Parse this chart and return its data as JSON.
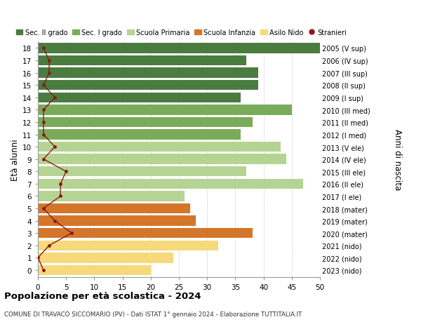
{
  "ages": [
    18,
    17,
    16,
    15,
    14,
    13,
    12,
    11,
    10,
    9,
    8,
    7,
    6,
    5,
    4,
    3,
    2,
    1,
    0
  ],
  "right_labels": [
    "2005 (V sup)",
    "2006 (IV sup)",
    "2007 (III sup)",
    "2008 (II sup)",
    "2009 (I sup)",
    "2010 (III med)",
    "2011 (II med)",
    "2012 (I med)",
    "2013 (V ele)",
    "2014 (IV ele)",
    "2015 (III ele)",
    "2016 (II ele)",
    "2017 (I ele)",
    "2018 (mater)",
    "2019 (mater)",
    "2020 (mater)",
    "2021 (nido)",
    "2022 (nido)",
    "2023 (nido)"
  ],
  "bar_values": [
    50,
    37,
    39,
    39,
    36,
    45,
    38,
    36,
    43,
    44,
    37,
    47,
    26,
    27,
    28,
    38,
    32,
    24,
    20
  ],
  "bar_colors": [
    "#4a7c3f",
    "#4a7c3f",
    "#4a7c3f",
    "#4a7c3f",
    "#4a7c3f",
    "#7aab5a",
    "#7aab5a",
    "#7aab5a",
    "#b5d494",
    "#b5d494",
    "#b5d494",
    "#b5d494",
    "#b5d494",
    "#d4762a",
    "#d4762a",
    "#d4762a",
    "#f5d97a",
    "#f5d97a",
    "#f5d97a"
  ],
  "stranieri_ages": [
    18,
    17,
    16,
    15,
    14,
    13,
    12,
    11,
    10,
    9,
    8,
    7,
    6,
    5,
    4,
    3,
    2,
    1,
    0
  ],
  "stranieri_values": [
    1,
    2,
    2,
    1,
    3,
    1,
    1,
    1,
    3,
    1,
    5,
    4,
    4,
    1,
    3,
    6,
    2,
    0,
    1
  ],
  "stranieri_color": "#8b1a1a",
  "legend_items": [
    {
      "label": "Sec. II grado",
      "color": "#4a7c3f"
    },
    {
      "label": "Sec. I grado",
      "color": "#7aab5a"
    },
    {
      "label": "Scuola Primaria",
      "color": "#b5d494"
    },
    {
      "label": "Scuola Infanzia",
      "color": "#d4762a"
    },
    {
      "label": "Asilo Nido",
      "color": "#f5d97a"
    },
    {
      "label": "Stranieri",
      "color": "#8b1a1a"
    }
  ],
  "ylabel_left": "Età alunni",
  "ylabel_right": "Anni di nascita",
  "title": "Popolazione per età scolastica - 2024",
  "subtitle": "COMUNE DI TRAVACÒ SICCOMARIO (PV) - Dati ISTAT 1° gennaio 2024 - Elaborazione TUTTITALIA.IT",
  "xlim": [
    0,
    50
  ],
  "xticks": [
    0,
    5,
    10,
    15,
    20,
    25,
    30,
    35,
    40,
    45,
    50
  ],
  "background_color": "#ffffff",
  "grid_color": "#cccccc",
  "bar_height": 0.82
}
